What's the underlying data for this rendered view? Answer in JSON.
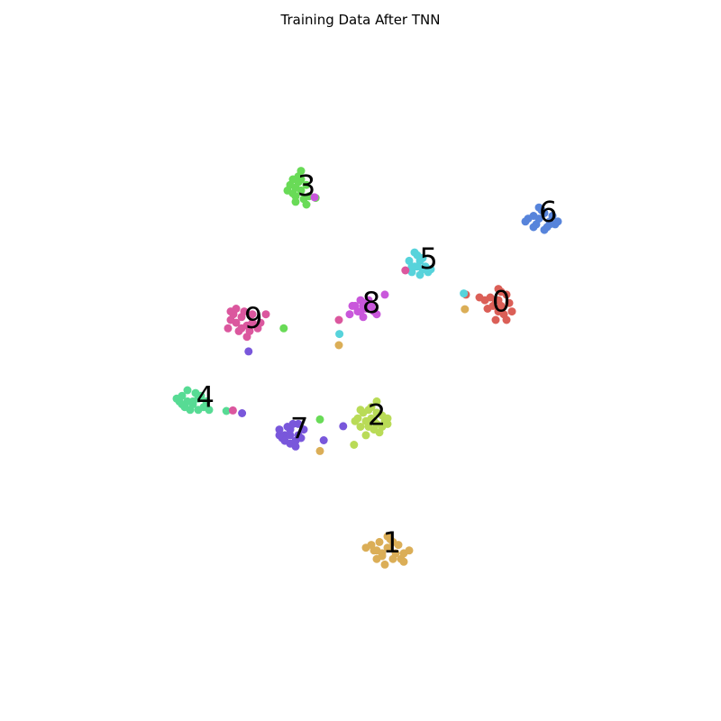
{
  "chart_data": {
    "type": "scatter",
    "title": "Training Data After TNN",
    "xlabel": "",
    "ylabel": "",
    "axes_visible": false,
    "grid": false,
    "xlim": [
      0,
      100
    ],
    "ylim": [
      0,
      100
    ],
    "colors": {
      "0": "#db5f57",
      "1": "#dbae57",
      "2": "#b9db57",
      "3": "#69db57",
      "4": "#57db94",
      "5": "#57d3db",
      "6": "#5784db",
      "7": "#7957db",
      "8": "#c957db",
      "9": "#db579e"
    },
    "series": [
      {
        "name": "0",
        "label_pos": [
          76,
          61.8
        ],
        "points": [
          [
            76,
            61
          ],
          [
            75,
            62
          ],
          [
            77,
            63
          ],
          [
            74,
            62.5
          ],
          [
            75.5,
            60
          ],
          [
            77.5,
            61.5
          ],
          [
            73,
            62
          ],
          [
            76.5,
            59.5
          ],
          [
            75,
            58.5
          ],
          [
            74.5,
            61
          ],
          [
            78,
            60
          ],
          [
            76,
            63.5
          ],
          [
            73.5,
            60.5
          ],
          [
            77,
            58.5
          ],
          [
            75.5,
            64
          ],
          [
            72,
            62.5
          ],
          [
            75.5,
            62
          ]
        ]
      },
      {
        "name": "1",
        "label_pos": [
          55.8,
          18.9
        ],
        "points": [
          [
            55,
            18
          ],
          [
            53,
            17.5
          ],
          [
            57,
            18.5
          ],
          [
            54,
            16.5
          ],
          [
            56,
            16
          ],
          [
            52,
            18.5
          ],
          [
            58,
            17
          ],
          [
            55.5,
            19.5
          ],
          [
            53.5,
            19
          ],
          [
            57.5,
            16
          ],
          [
            54.5,
            15
          ],
          [
            56.5,
            17
          ],
          [
            51,
            18
          ],
          [
            59,
            17.5
          ],
          [
            55,
            20
          ],
          [
            58,
            15.5
          ],
          [
            53,
            16
          ],
          [
            54,
            17
          ],
          [
            56,
            19
          ],
          [
            52.5,
            17.5
          ]
        ]
      },
      {
        "name": "2",
        "label_pos": [
          53,
          41.6
        ],
        "points": [
          [
            51,
            40.5
          ],
          [
            52,
            41
          ],
          [
            50.5,
            42
          ],
          [
            53,
            40
          ],
          [
            54,
            41.5
          ],
          [
            52.5,
            39
          ],
          [
            50,
            39.5
          ],
          [
            54.5,
            40.5
          ],
          [
            51.5,
            42.5
          ],
          [
            53.5,
            38.5
          ],
          [
            49.5,
            41
          ],
          [
            52,
            43
          ],
          [
            55,
            41
          ],
          [
            51,
            38
          ],
          [
            50,
            42.5
          ],
          [
            53,
            42
          ],
          [
            54,
            39.5
          ],
          [
            52.5,
            40.5
          ],
          [
            51.5,
            39.5
          ],
          [
            55,
            40
          ],
          [
            49,
            40.5
          ],
          [
            53,
            44
          ]
        ]
      },
      {
        "name": "3",
        "label_pos": [
          40,
          82.4
        ],
        "points": [
          [
            38,
            82
          ],
          [
            39,
            83.5
          ],
          [
            37.5,
            81
          ],
          [
            39.5,
            80
          ],
          [
            38.5,
            84
          ],
          [
            40,
            82.5
          ],
          [
            37,
            82.5
          ],
          [
            38,
            79.5
          ],
          [
            39,
            81.5
          ],
          [
            40.5,
            80.5
          ],
          [
            37.5,
            83.5
          ],
          [
            39,
            85
          ],
          [
            38,
            80.5
          ],
          [
            36.5,
            81.5
          ],
          [
            40,
            79
          ],
          [
            38.5,
            83
          ]
        ]
      },
      {
        "name": "4",
        "label_pos": [
          21.3,
          44.8
        ],
        "points": [
          [
            18,
            44
          ],
          [
            17,
            45
          ],
          [
            19,
            43.5
          ],
          [
            20,
            44.5
          ],
          [
            18.5,
            42.5
          ],
          [
            17.5,
            43
          ],
          [
            19.5,
            45.5
          ],
          [
            21,
            43
          ],
          [
            16.5,
            44
          ],
          [
            18,
            46
          ],
          [
            20,
            42.5
          ],
          [
            19,
            44
          ],
          [
            21.5,
            44
          ],
          [
            22,
            42.5
          ],
          [
            17,
            43.5
          ],
          [
            16,
            44.5
          ],
          [
            20.5,
            45
          ]
        ]
      },
      {
        "name": "5",
        "label_pos": [
          62.6,
          69.4
        ],
        "points": [
          [
            60,
            68
          ],
          [
            61,
            69
          ],
          [
            59.5,
            67
          ],
          [
            61.5,
            67.5
          ],
          [
            60.5,
            70
          ],
          [
            62,
            68
          ],
          [
            59,
            69
          ],
          [
            61,
            66.5
          ],
          [
            62.5,
            67
          ],
          [
            60,
            70.5
          ],
          [
            63,
            67.5
          ],
          [
            60.5,
            68
          ],
          [
            61.5,
            69.5
          ],
          [
            59.5,
            68
          ]
        ]
      },
      {
        "name": "6",
        "label_pos": [
          84.7,
          77.7
        ],
        "points": [
          [
            82,
            77
          ],
          [
            83,
            76.5
          ],
          [
            84,
            77.5
          ],
          [
            85,
            76
          ],
          [
            86,
            75.5
          ],
          [
            83.5,
            78
          ],
          [
            82.5,
            75.5
          ],
          [
            81,
            76.5
          ],
          [
            84.5,
            75
          ],
          [
            85.5,
            77
          ],
          [
            86.5,
            76
          ],
          [
            80.5,
            76
          ],
          [
            83,
            78.5
          ],
          [
            84,
            74.5
          ],
          [
            85,
            75.5
          ],
          [
            82,
            75
          ]
        ]
      },
      {
        "name": "7",
        "label_pos": [
          38.7,
          39.2
        ],
        "points": [
          [
            36,
            38
          ],
          [
            37,
            39
          ],
          [
            35.5,
            37.5
          ],
          [
            38,
            37
          ],
          [
            37,
            36.5
          ],
          [
            36.5,
            39.5
          ],
          [
            38.5,
            38
          ],
          [
            39,
            37.5
          ],
          [
            35,
            38
          ],
          [
            37.5,
            40
          ],
          [
            36,
            37
          ],
          [
            38,
            36
          ],
          [
            37,
            38
          ],
          [
            39.5,
            39
          ],
          [
            35,
            39
          ],
          [
            38.5,
            40
          ]
        ]
      },
      {
        "name": "8",
        "label_pos": [
          52,
          61.5
        ],
        "points": [
          [
            50,
            60
          ],
          [
            51,
            60.5
          ],
          [
            49,
            61
          ],
          [
            52,
            61
          ],
          [
            50.5,
            59
          ],
          [
            48,
            59.5
          ],
          [
            51.5,
            62
          ],
          [
            49.5,
            60
          ],
          [
            52.5,
            60
          ],
          [
            51,
            61.5
          ],
          [
            48.5,
            61
          ],
          [
            50,
            62
          ],
          [
            53,
            59.5
          ],
          [
            54.5,
            63
          ],
          [
            50.5,
            61
          ]
        ]
      },
      {
        "name": "9",
        "label_pos": [
          30.2,
          58.8
        ],
        "points": [
          [
            27,
            58
          ],
          [
            28,
            59
          ],
          [
            26,
            58.5
          ],
          [
            29,
            57.5
          ],
          [
            27.5,
            56.5
          ],
          [
            30,
            58
          ],
          [
            25.5,
            57
          ],
          [
            28.5,
            60
          ],
          [
            26.5,
            59.5
          ],
          [
            29.5,
            56.5
          ],
          [
            31,
            57
          ],
          [
            30,
            59.5
          ],
          [
            28,
            57
          ],
          [
            26,
            60
          ],
          [
            32.5,
            59.5
          ],
          [
            29,
            55.5
          ],
          [
            27,
            60.5
          ],
          [
            31.5,
            58
          ]
        ]
      }
    ],
    "outliers": [
      {
        "cls": "0",
        "points": [
          [
            69.5,
            63
          ]
        ]
      },
      {
        "cls": "1",
        "points": [
          [
            46,
            54
          ],
          [
            69.3,
            60.4
          ],
          [
            42.5,
            35.2
          ]
        ]
      },
      {
        "cls": "2",
        "points": [
          [
            48.8,
            36.3
          ]
        ]
      },
      {
        "cls": "3",
        "points": [
          [
            35.8,
            57
          ],
          [
            41.7,
            80.2
          ],
          [
            42.5,
            40.8
          ]
        ]
      },
      {
        "cls": "4",
        "points": [
          [
            25.2,
            42.3
          ]
        ]
      },
      {
        "cls": "5",
        "points": [
          [
            46.1,
            56
          ],
          [
            69.1,
            63.2
          ]
        ]
      },
      {
        "cls": "7",
        "points": [
          [
            29.3,
            52.9
          ],
          [
            46.8,
            39.6
          ],
          [
            28.1,
            41.9
          ],
          [
            43.2,
            37.1
          ]
        ]
      },
      {
        "cls": "8",
        "points": [
          [
            41.5,
            80.3
          ]
        ]
      },
      {
        "cls": "9",
        "points": [
          [
            58.3,
            67.3
          ],
          [
            46,
            58.5
          ],
          [
            26.4,
            42.4
          ]
        ]
      }
    ]
  }
}
